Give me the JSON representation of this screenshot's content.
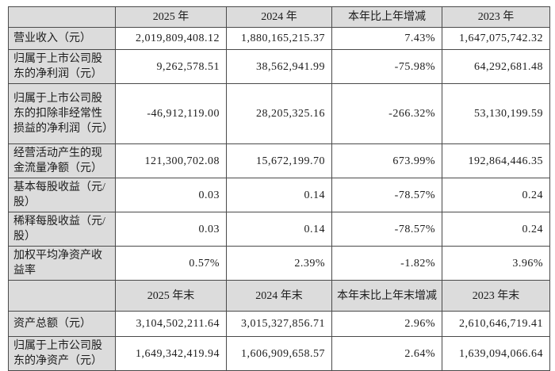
{
  "colors": {
    "header_bg": "#dcdcdc",
    "label_bg": "#dcdcdc",
    "border": "#4a4a4a",
    "text": "#1c1c1c",
    "page_bg": "#ffffff"
  },
  "table": {
    "period_header": [
      "",
      "2025 年",
      "2024 年",
      "本年比上年增减",
      "2023 年"
    ],
    "period_rows": [
      {
        "label": "营业收入（元）",
        "values": [
          "2,019,809,408.12",
          "1,880,165,215.37",
          "7.43%",
          "1,647,075,742.32"
        ]
      },
      {
        "label": "归属于上市公司股东的净利润（元）",
        "values": [
          "9,262,578.51",
          "38,562,941.99",
          "-75.98%",
          "64,292,681.48"
        ]
      },
      {
        "label": "归属于上市公司股东的扣除非经常性损益的净利润（元）",
        "values": [
          "-46,912,119.00",
          "28,205,325.16",
          "-266.32%",
          "53,130,199.59"
        ]
      },
      {
        "label": "经营活动产生的现金流量净额（元）",
        "values": [
          "121,300,702.08",
          "15,672,199.70",
          "673.99%",
          "192,864,446.35"
        ]
      },
      {
        "label": "基本每股收益（元/股）",
        "values": [
          "0.03",
          "0.14",
          "-78.57%",
          "0.24"
        ]
      },
      {
        "label": "稀释每股收益（元/股）",
        "values": [
          "0.03",
          "0.14",
          "-78.57%",
          "0.24"
        ]
      },
      {
        "label": "加权平均净资产收益率",
        "values": [
          "0.57%",
          "2.39%",
          "-1.82%",
          "3.96%"
        ]
      }
    ],
    "end_header": [
      "",
      "2025 年末",
      "2024 年末",
      "本年末比上年末增减",
      "2023 年末"
    ],
    "end_rows": [
      {
        "label": "资产总额（元）",
        "values": [
          "3,104,502,211.64",
          "3,015,327,856.71",
          "2.96%",
          "2,610,646,719.41"
        ]
      },
      {
        "label": "归属于上市公司股东的净资产（元）",
        "values": [
          "1,649,342,419.94",
          "1,606,909,658.57",
          "2.64%",
          "1,639,094,066.64"
        ]
      }
    ]
  }
}
